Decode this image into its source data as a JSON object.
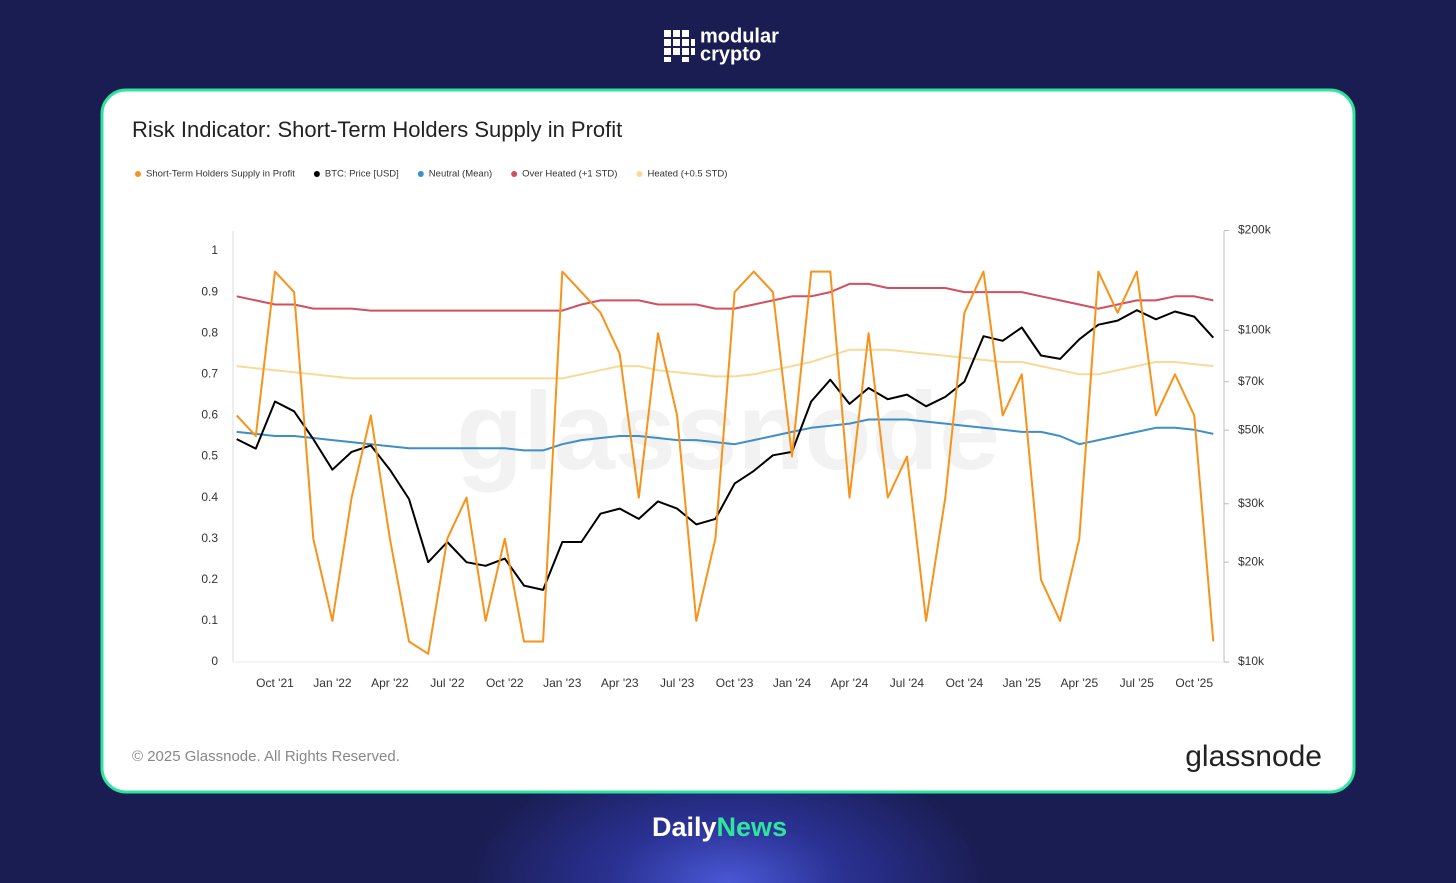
{
  "brand": {
    "top_line1": "modular",
    "top_line2": "crypto",
    "bottom_part1": "Daily",
    "bottom_part2": "News"
  },
  "chart_data": {
    "type": "line",
    "title": "Risk Indicator: Short-Term Holders Supply in Profit",
    "watermark": "glassnode",
    "copyright": "© 2025 Glassnode. All Rights Reserved.",
    "logo": "glassnode",
    "grid": false,
    "categories": [
      null,
      null,
      "Oct '21",
      null,
      null,
      "Jan '22",
      null,
      null,
      "Apr '22",
      null,
      null,
      "Jul '22",
      null,
      null,
      "Oct '22",
      null,
      null,
      "Jan '23",
      null,
      null,
      "Apr '23",
      null,
      null,
      "Jul '23",
      null,
      null,
      "Oct '23",
      null,
      null,
      "Jan '24",
      null,
      null,
      "Apr '24",
      null,
      null,
      "Jul '24",
      null,
      null,
      "Oct '24",
      null,
      null,
      "Jan '25",
      null,
      null,
      "Apr '25",
      null,
      null,
      "Jul '25",
      null,
      null,
      "Oct '25",
      null
    ],
    "ylim": [
      0,
      1.05
    ],
    "yticks": [
      0,
      0.1,
      0.2,
      0.3,
      0.4,
      0.5,
      0.6,
      0.7,
      0.8,
      0.9,
      1
    ],
    "y2lim": [
      10000,
      200000
    ],
    "y2_log": true,
    "y2ticks": [
      {
        "value": 10000,
        "label": "$10k"
      },
      {
        "value": 20000,
        "label": "$20k"
      },
      {
        "value": 30000,
        "label": "$30k"
      },
      {
        "value": 50000,
        "label": "$50k"
      },
      {
        "value": 70000,
        "label": "$70k"
      },
      {
        "value": 100000,
        "label": "$100k"
      },
      {
        "value": 200000,
        "label": "$200k"
      }
    ],
    "series": [
      {
        "name": "Short-Term Holders Supply in Profit",
        "color": "#f7931a",
        "axis": "y",
        "width": 2,
        "values": [
          0.6,
          0.55,
          0.95,
          0.9,
          0.3,
          0.1,
          0.4,
          0.6,
          0.3,
          0.05,
          0.02,
          0.3,
          0.4,
          0.1,
          0.3,
          0.05,
          0.05,
          0.95,
          0.9,
          0.85,
          0.75,
          0.4,
          0.8,
          0.6,
          0.1,
          0.3,
          0.9,
          0.95,
          0.9,
          0.5,
          0.95,
          0.95,
          0.4,
          0.8,
          0.4,
          0.5,
          0.1,
          0.4,
          0.85,
          0.95,
          0.6,
          0.7,
          0.2,
          0.1,
          0.3,
          0.95,
          0.85,
          0.95,
          0.6,
          0.7,
          0.6,
          0.05
        ]
      },
      {
        "name": "BTC: Price [USD]",
        "color": "#000000",
        "axis": "y2",
        "width": 2,
        "values": [
          47000,
          44000,
          61000,
          57000,
          47000,
          38000,
          43000,
          45000,
          38000,
          31000,
          20000,
          23000,
          20000,
          19500,
          20500,
          17000,
          16500,
          23000,
          23000,
          28000,
          29000,
          27000,
          30500,
          29000,
          26000,
          27000,
          34500,
          37700,
          42000,
          43000,
          61000,
          71000,
          60000,
          67000,
          62000,
          64000,
          59000,
          63000,
          70000,
          96000,
          93000,
          102000,
          84000,
          82000,
          94000,
          104000,
          107000,
          115000,
          108000,
          114000,
          110000,
          95000
        ]
      },
      {
        "name": "Neutral (Mean)",
        "color": "#3d8fc6",
        "axis": "y",
        "width": 2,
        "values": [
          0.56,
          0.555,
          0.55,
          0.55,
          0.545,
          0.54,
          0.535,
          0.53,
          0.525,
          0.52,
          0.52,
          0.52,
          0.52,
          0.52,
          0.52,
          0.515,
          0.515,
          0.53,
          0.54,
          0.545,
          0.55,
          0.55,
          0.545,
          0.54,
          0.54,
          0.535,
          0.53,
          0.54,
          0.55,
          0.56,
          0.57,
          0.575,
          0.58,
          0.59,
          0.59,
          0.59,
          0.585,
          0.58,
          0.575,
          0.57,
          0.565,
          0.56,
          0.56,
          0.55,
          0.53,
          0.54,
          0.55,
          0.56,
          0.57,
          0.57,
          0.565,
          0.555
        ]
      },
      {
        "name": "Over Heated (+1 STD)",
        "color": "#d0505f",
        "axis": "y",
        "width": 2,
        "values": [
          0.89,
          0.88,
          0.87,
          0.87,
          0.86,
          0.86,
          0.86,
          0.855,
          0.855,
          0.855,
          0.855,
          0.855,
          0.855,
          0.855,
          0.855,
          0.855,
          0.855,
          0.855,
          0.87,
          0.88,
          0.88,
          0.88,
          0.87,
          0.87,
          0.87,
          0.86,
          0.86,
          0.87,
          0.88,
          0.89,
          0.89,
          0.9,
          0.92,
          0.92,
          0.91,
          0.91,
          0.91,
          0.91,
          0.9,
          0.9,
          0.9,
          0.9,
          0.89,
          0.88,
          0.87,
          0.86,
          0.87,
          0.88,
          0.88,
          0.89,
          0.89,
          0.88
        ]
      },
      {
        "name": "Heated (+0.5 STD)",
        "color": "#f8d999",
        "axis": "y",
        "width": 2,
        "values": [
          0.72,
          0.715,
          0.71,
          0.705,
          0.7,
          0.695,
          0.69,
          0.69,
          0.69,
          0.69,
          0.69,
          0.69,
          0.69,
          0.69,
          0.69,
          0.69,
          0.69,
          0.69,
          0.7,
          0.71,
          0.72,
          0.72,
          0.71,
          0.705,
          0.7,
          0.695,
          0.695,
          0.7,
          0.71,
          0.72,
          0.73,
          0.745,
          0.76,
          0.76,
          0.76,
          0.755,
          0.75,
          0.745,
          0.74,
          0.735,
          0.73,
          0.73,
          0.72,
          0.71,
          0.7,
          0.7,
          0.71,
          0.72,
          0.73,
          0.73,
          0.725,
          0.72
        ]
      }
    ]
  }
}
